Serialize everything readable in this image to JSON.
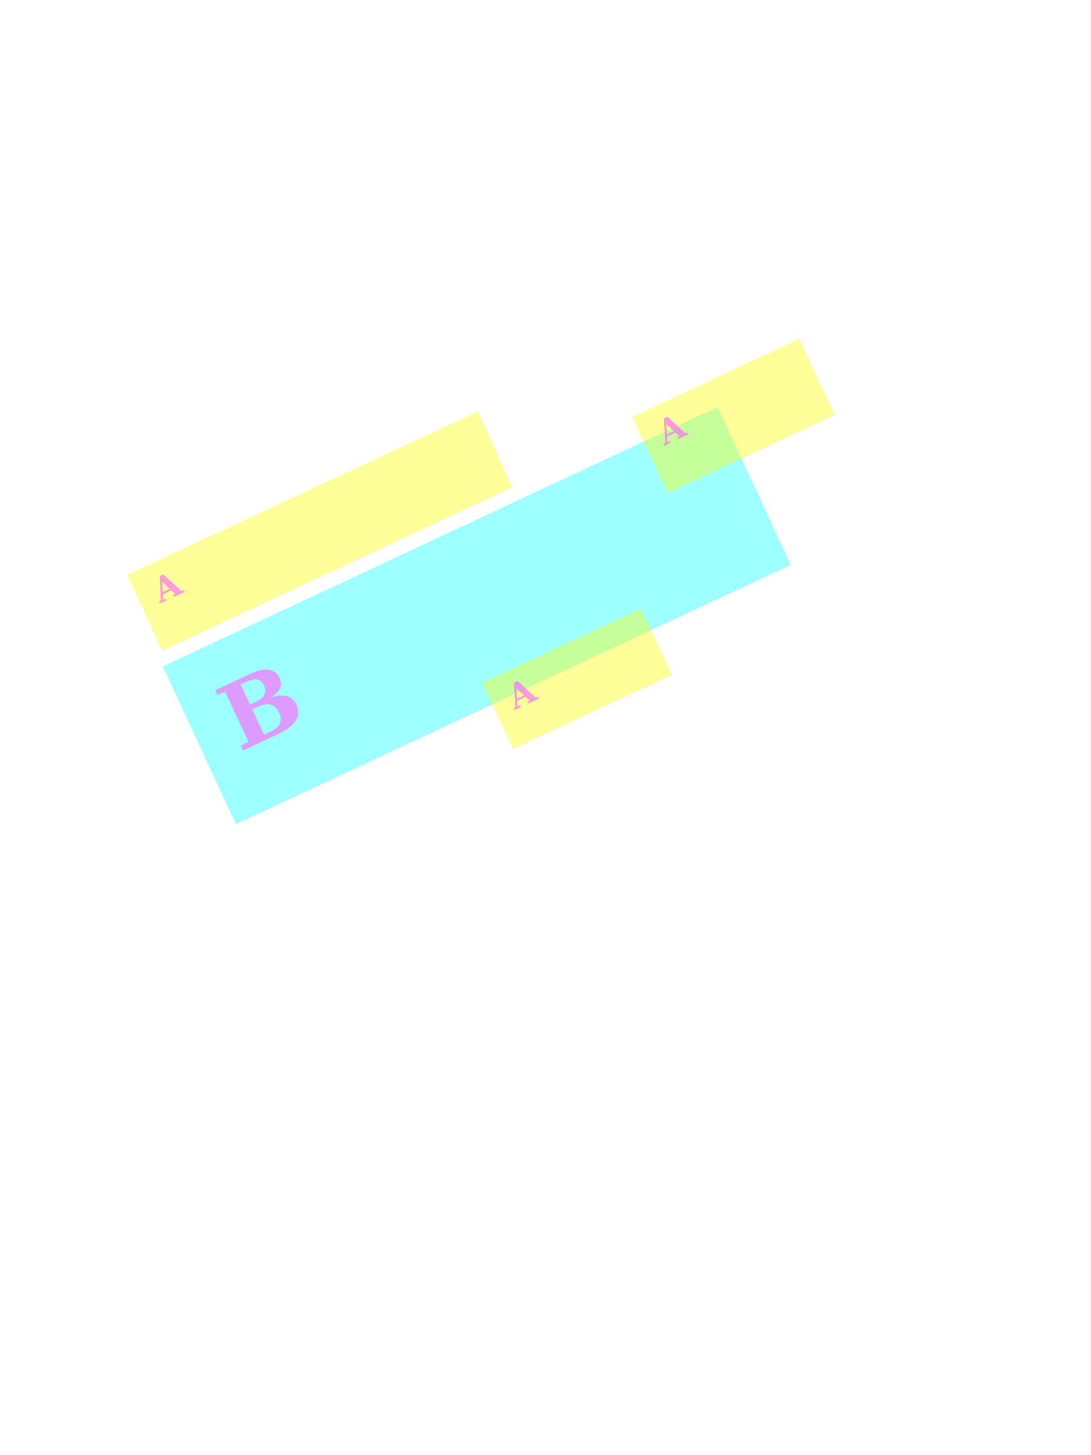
{
  "regions": [
    {
      "kind": "B",
      "label": "B",
      "fill": "#00ffff",
      "opacity": 0.38
    },
    {
      "kind": "A",
      "label": "A",
      "fill": "#ffff00",
      "opacity": 0.4
    },
    {
      "kind": "A",
      "label": "A",
      "fill": "#ffff00",
      "opacity": 0.4
    },
    {
      "kind": "A",
      "label": "A",
      "fill": "#ffff00",
      "opacity": 0.4
    }
  ],
  "label_color": "#ff66ff",
  "label_opacity": 0.65,
  "background": "#ffffff"
}
